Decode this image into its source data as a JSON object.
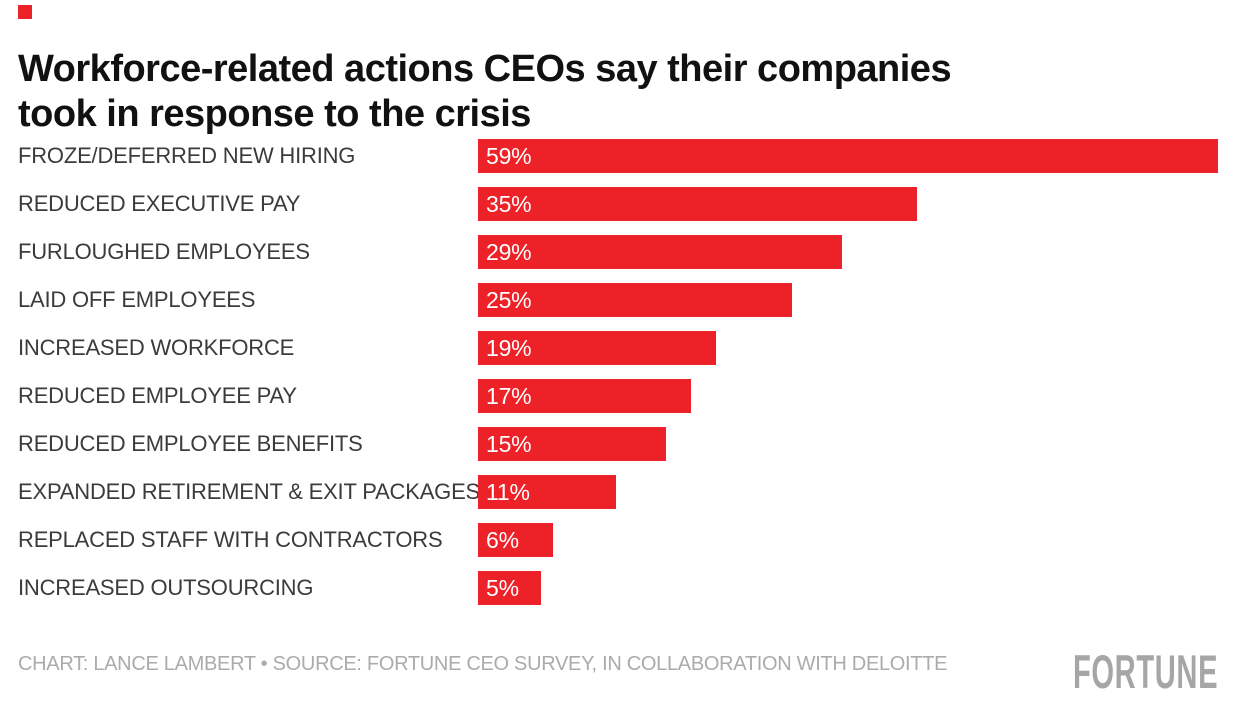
{
  "colors": {
    "brand_red": "#ed2128",
    "title_text": "#111111",
    "category_text": "#3b3b3b",
    "value_text": "#ffffff",
    "credit_text": "#ababab",
    "logo_text_color": "#a6a6a6",
    "background": "#ffffff"
  },
  "title": {
    "full": "Workforce-related actions CEOs say their companies took in response to the crisis",
    "line1": "Workforce-related actions CEOs say their companies",
    "line2": "took in response to the crisis"
  },
  "chart_data": {
    "type": "bar",
    "orientation": "horizontal",
    "title": "Workforce-related actions CEOs say their companies took in response to the crisis",
    "categories": [
      "FROZE/DEFERRED NEW HIRING",
      "REDUCED EXECUTIVE PAY",
      "FURLOUGHED EMPLOYEES",
      "LAID OFF EMPLOYEES",
      "INCREASED WORKFORCE",
      "REDUCED EMPLOYEE PAY",
      "REDUCED EMPLOYEE BENEFITS",
      "EXPANDED RETIREMENT & EXIT PACKAGES",
      "REPLACED STAFF WITH CONTRACTORS",
      "INCREASED OUTSOURCING"
    ],
    "values": [
      59,
      35,
      29,
      25,
      19,
      17,
      15,
      11,
      6,
      5
    ],
    "value_labels": [
      "59%",
      "35%",
      "29%",
      "25%",
      "19%",
      "17%",
      "15%",
      "11%",
      "6%",
      "5%"
    ],
    "unit": "%",
    "xlabel": "",
    "ylabel": "",
    "xlim": [
      0,
      59
    ],
    "grid": false,
    "legend": false,
    "bar_color": "#ed2128",
    "value_labels_inside_bars": true
  },
  "footer": {
    "credit": "CHART: LANCE LAMBERT • SOURCE: FORTUNE CEO SURVEY, IN COLLABORATION WITH DELOITTE",
    "logo_text": "FORTUNE"
  }
}
